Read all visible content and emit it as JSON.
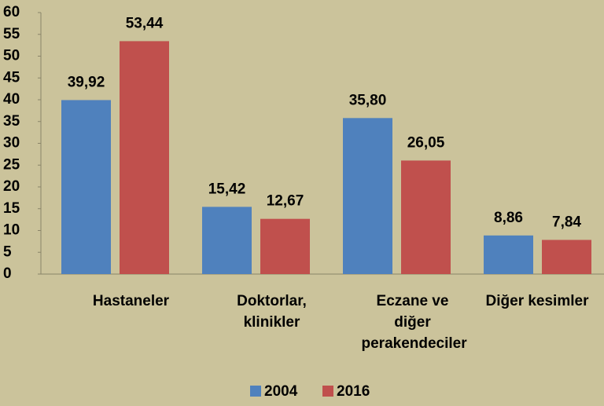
{
  "chart_data": {
    "type": "bar",
    "categories": [
      "Hastaneler",
      "Doktorlar, klinikler",
      "Eczane ve diğer perakendeciler",
      "Diğer kesimler"
    ],
    "series": [
      {
        "name": "2004",
        "color": "#4f81bd",
        "values": [
          39.92,
          15.42,
          35.8,
          8.86
        ],
        "value_labels": [
          "39,92",
          "15,42",
          "35,80",
          "8,86"
        ]
      },
      {
        "name": "2016",
        "color": "#c0504d",
        "values": [
          53.44,
          12.67,
          26.05,
          7.84
        ],
        "value_labels": [
          "53,44",
          "12,67",
          "26,05",
          "7,84"
        ]
      }
    ],
    "ylim": [
      0,
      60
    ],
    "yticks": [
      0,
      5,
      10,
      15,
      20,
      25,
      30,
      35,
      40,
      45,
      50,
      55,
      60
    ],
    "grid": false,
    "legend": "bottom"
  }
}
